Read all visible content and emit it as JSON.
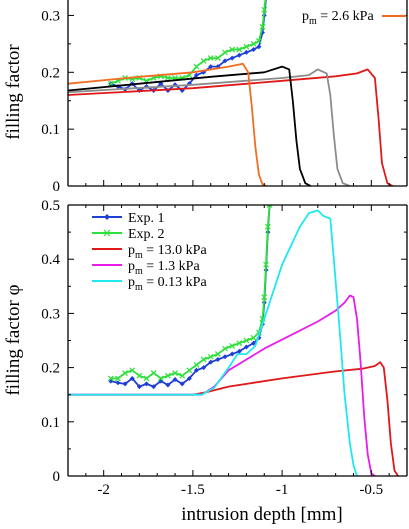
{
  "chart_data": [
    {
      "type": "line",
      "panel": "top",
      "title": "",
      "xlabel": "",
      "ylabel": "filling factor",
      "xlim": [
        -2.2,
        -0.3
      ],
      "ylim": [
        0,
        0.35
      ],
      "yticks": [
        0,
        0.1,
        0.2,
        0.3
      ],
      "ytick_labels": [
        "0",
        "0.1",
        "0.2",
        "0.3"
      ],
      "x_tick_labels_shown": false,
      "grid": false,
      "legend_visible_text": "p",
      "legend_visible_sub": "m",
      "legend_visible_rest": " = 2.6 kPa",
      "legend_visible_color": "#f26d21",
      "series": [
        {
          "color": "#1f3fd6",
          "marker": "diamond",
          "points": [
            [
              -1.96,
              0.18
            ],
            [
              -1.92,
              0.175
            ],
            [
              -1.88,
              0.17
            ],
            [
              -1.84,
              0.18
            ],
            [
              -1.8,
              0.168
            ],
            [
              -1.76,
              0.175
            ],
            [
              -1.72,
              0.168
            ],
            [
              -1.68,
              0.18
            ],
            [
              -1.64,
              0.168
            ],
            [
              -1.6,
              0.178
            ],
            [
              -1.56,
              0.168
            ],
            [
              -1.52,
              0.18
            ],
            [
              -1.48,
              0.195
            ],
            [
              -1.44,
              0.2
            ],
            [
              -1.4,
              0.21
            ],
            [
              -1.36,
              0.21
            ],
            [
              -1.32,
              0.22
            ],
            [
              -1.28,
              0.225
            ],
            [
              -1.24,
              0.23
            ],
            [
              -1.2,
              0.235
            ],
            [
              -1.16,
              0.24
            ],
            [
              -1.13,
              0.245
            ],
            [
              -1.11,
              0.27
            ],
            [
              -1.1,
              0.3
            ],
            [
              -1.09,
              0.33
            ],
            [
              -1.08,
              0.36
            ]
          ]
        },
        {
          "color": "#2ee03a",
          "marker": "x",
          "points": [
            [
              -1.96,
              0.18
            ],
            [
              -1.92,
              0.185
            ],
            [
              -1.88,
              0.19
            ],
            [
              -1.84,
              0.188
            ],
            [
              -1.8,
              0.19
            ],
            [
              -1.76,
              0.185
            ],
            [
              -1.72,
              0.19
            ],
            [
              -1.68,
              0.193
            ],
            [
              -1.64,
              0.19
            ],
            [
              -1.6,
              0.19
            ],
            [
              -1.56,
              0.19
            ],
            [
              -1.52,
              0.195
            ],
            [
              -1.48,
              0.21
            ],
            [
              -1.44,
              0.22
            ],
            [
              -1.4,
              0.225
            ],
            [
              -1.36,
              0.225
            ],
            [
              -1.32,
              0.235
            ],
            [
              -1.28,
              0.24
            ],
            [
              -1.24,
              0.24
            ],
            [
              -1.2,
              0.245
            ],
            [
              -1.16,
              0.25
            ],
            [
              -1.13,
              0.255
            ],
            [
              -1.11,
              0.28
            ],
            [
              -1.1,
              0.31
            ],
            [
              -1.09,
              0.34
            ],
            [
              -1.08,
              0.36
            ]
          ]
        },
        {
          "color": "#e01818",
          "marker": "none",
          "points": [
            [
              -2.2,
              0.16
            ],
            [
              -1.5,
              0.172
            ],
            [
              -1.0,
              0.185
            ],
            [
              -0.7,
              0.193
            ],
            [
              -0.58,
              0.198
            ],
            [
              -0.52,
              0.205
            ],
            [
              -0.48,
              0.19
            ],
            [
              -0.46,
              0.12
            ],
            [
              -0.44,
              0.04
            ],
            [
              -0.41,
              0.005
            ],
            [
              -0.38,
              0.0
            ]
          ]
        },
        {
          "color": "#8c8c8c",
          "marker": "none",
          "points": [
            [
              -2.2,
              0.165
            ],
            [
              -1.5,
              0.178
            ],
            [
              -1.0,
              0.19
            ],
            [
              -0.85,
              0.195
            ],
            [
              -0.8,
              0.205
            ],
            [
              -0.75,
              0.198
            ],
            [
              -0.73,
              0.16
            ],
            [
              -0.71,
              0.09
            ],
            [
              -0.69,
              0.03
            ],
            [
              -0.66,
              0.005
            ],
            [
              -0.62,
              0.0
            ]
          ]
        },
        {
          "color": "#000000",
          "marker": "none",
          "points": [
            [
              -2.2,
              0.168
            ],
            [
              -1.8,
              0.18
            ],
            [
              -1.4,
              0.192
            ],
            [
              -1.1,
              0.2
            ],
            [
              -1.0,
              0.21
            ],
            [
              -0.96,
              0.205
            ],
            [
              -0.94,
              0.15
            ],
            [
              -0.92,
              0.08
            ],
            [
              -0.9,
              0.03
            ],
            [
              -0.87,
              0.005
            ],
            [
              -0.84,
              0.0
            ]
          ]
        },
        {
          "color": "#f26d21",
          "marker": "none",
          "points": [
            [
              -2.2,
              0.18
            ],
            [
              -1.8,
              0.192
            ],
            [
              -1.5,
              0.2
            ],
            [
              -1.3,
              0.21
            ],
            [
              -1.22,
              0.215
            ],
            [
              -1.19,
              0.2
            ],
            [
              -1.17,
              0.14
            ],
            [
              -1.15,
              0.07
            ],
            [
              -1.13,
              0.02
            ],
            [
              -1.11,
              0.003
            ],
            [
              -1.09,
              0.0
            ]
          ]
        }
      ]
    },
    {
      "type": "line",
      "panel": "bottom",
      "title": "",
      "xlabel": "intrusion depth [mm]",
      "ylabel": "filling factor φ",
      "xlim": [
        -2.2,
        -0.3
      ],
      "ylim": [
        0,
        0.5
      ],
      "yticks": [
        0,
        0.1,
        0.2,
        0.3,
        0.4,
        0.5
      ],
      "ytick_labels": [
        "0",
        "0.1",
        "0.2",
        "0.3",
        "0.4",
        "0.5"
      ],
      "xticks": [
        -2,
        -1.5,
        -1,
        -0.5
      ],
      "xtick_labels": [
        "-2",
        "-1.5",
        "-1",
        "-0.5"
      ],
      "grid": false,
      "legend_position": "top-left",
      "series": [
        {
          "name": "Exp. 1",
          "name_parts": [
            "Exp. 1",
            "",
            ""
          ],
          "color": "#1f3fd6",
          "marker": "diamond",
          "points": [
            [
              -1.96,
              0.175
            ],
            [
              -1.92,
              0.172
            ],
            [
              -1.88,
              0.17
            ],
            [
              -1.84,
              0.18
            ],
            [
              -1.8,
              0.165
            ],
            [
              -1.76,
              0.17
            ],
            [
              -1.72,
              0.165
            ],
            [
              -1.68,
              0.175
            ],
            [
              -1.64,
              0.168
            ],
            [
              -1.6,
              0.178
            ],
            [
              -1.56,
              0.17
            ],
            [
              -1.52,
              0.18
            ],
            [
              -1.48,
              0.195
            ],
            [
              -1.44,
              0.2
            ],
            [
              -1.4,
              0.21
            ],
            [
              -1.36,
              0.215
            ],
            [
              -1.32,
              0.22
            ],
            [
              -1.28,
              0.225
            ],
            [
              -1.24,
              0.23
            ],
            [
              -1.2,
              0.238
            ],
            [
              -1.16,
              0.245
            ],
            [
              -1.13,
              0.255
            ],
            [
              -1.11,
              0.28
            ],
            [
              -1.1,
              0.32
            ],
            [
              -1.09,
              0.38
            ],
            [
              -1.08,
              0.45
            ],
            [
              -1.07,
              0.5
            ]
          ]
        },
        {
          "name": "Exp. 2",
          "name_parts": [
            "Exp. 2",
            "",
            ""
          ],
          "color": "#2ee03a",
          "marker": "x",
          "points": [
            [
              -1.96,
              0.18
            ],
            [
              -1.92,
              0.18
            ],
            [
              -1.88,
              0.19
            ],
            [
              -1.84,
              0.195
            ],
            [
              -1.8,
              0.185
            ],
            [
              -1.76,
              0.18
            ],
            [
              -1.72,
              0.19
            ],
            [
              -1.68,
              0.18
            ],
            [
              -1.64,
              0.185
            ],
            [
              -1.6,
              0.19
            ],
            [
              -1.56,
              0.185
            ],
            [
              -1.52,
              0.195
            ],
            [
              -1.48,
              0.205
            ],
            [
              -1.44,
              0.215
            ],
            [
              -1.4,
              0.22
            ],
            [
              -1.36,
              0.225
            ],
            [
              -1.32,
              0.235
            ],
            [
              -1.28,
              0.24
            ],
            [
              -1.24,
              0.245
            ],
            [
              -1.2,
              0.25
            ],
            [
              -1.16,
              0.255
            ],
            [
              -1.13,
              0.265
            ],
            [
              -1.11,
              0.29
            ],
            [
              -1.1,
              0.33
            ],
            [
              -1.09,
              0.39
            ],
            [
              -1.08,
              0.46
            ],
            [
              -1.07,
              0.5
            ]
          ]
        },
        {
          "name": "pm = 13.0 kPa",
          "name_parts": [
            "p",
            "m",
            " = 13.0 kPa"
          ],
          "color": "#e01818",
          "marker": "none",
          "points": [
            [
              -2.2,
              0.15
            ],
            [
              -1.5,
              0.15
            ],
            [
              -1.42,
              0.155
            ],
            [
              -1.3,
              0.165
            ],
            [
              -1.0,
              0.18
            ],
            [
              -0.7,
              0.193
            ],
            [
              -0.55,
              0.198
            ],
            [
              -0.48,
              0.203
            ],
            [
              -0.45,
              0.21
            ],
            [
              -0.43,
              0.2
            ],
            [
              -0.41,
              0.14
            ],
            [
              -0.39,
              0.06
            ],
            [
              -0.37,
              0.01
            ],
            [
              -0.35,
              0.0
            ]
          ]
        },
        {
          "name": "pm = 1.3 kPa",
          "name_parts": [
            "p",
            "m",
            " = 1.3 kPa"
          ],
          "color": "#e81ee8",
          "marker": "none",
          "points": [
            [
              -2.2,
              0.15
            ],
            [
              -1.45,
              0.15
            ],
            [
              -1.38,
              0.165
            ],
            [
              -1.3,
              0.195
            ],
            [
              -1.2,
              0.215
            ],
            [
              -1.1,
              0.235
            ],
            [
              -0.95,
              0.26
            ],
            [
              -0.8,
              0.285
            ],
            [
              -0.7,
              0.305
            ],
            [
              -0.65,
              0.32
            ],
            [
              -0.62,
              0.333
            ],
            [
              -0.6,
              0.33
            ],
            [
              -0.58,
              0.29
            ],
            [
              -0.56,
              0.21
            ],
            [
              -0.54,
              0.11
            ],
            [
              -0.52,
              0.04
            ],
            [
              -0.5,
              0.005
            ],
            [
              -0.48,
              0.0
            ]
          ]
        },
        {
          "name": "pm = 0.13 kPa",
          "name_parts": [
            "p",
            "m",
            " = 0.13 kPa"
          ],
          "color": "#1fe8ef",
          "marker": "none",
          "points": [
            [
              -2.2,
              0.15
            ],
            [
              -1.45,
              0.15
            ],
            [
              -1.38,
              0.163
            ],
            [
              -1.3,
              0.2
            ],
            [
              -1.25,
              0.225
            ],
            [
              -1.2,
              0.225
            ],
            [
              -1.15,
              0.24
            ],
            [
              -1.1,
              0.29
            ],
            [
              -1.0,
              0.39
            ],
            [
              -0.9,
              0.46
            ],
            [
              -0.85,
              0.485
            ],
            [
              -0.8,
              0.49
            ],
            [
              -0.77,
              0.48
            ],
            [
              -0.73,
              0.475
            ],
            [
              -0.71,
              0.4
            ],
            [
              -0.68,
              0.28
            ],
            [
              -0.65,
              0.15
            ],
            [
              -0.62,
              0.06
            ],
            [
              -0.6,
              0.02
            ],
            [
              -0.58,
              0.0
            ]
          ]
        }
      ]
    }
  ]
}
